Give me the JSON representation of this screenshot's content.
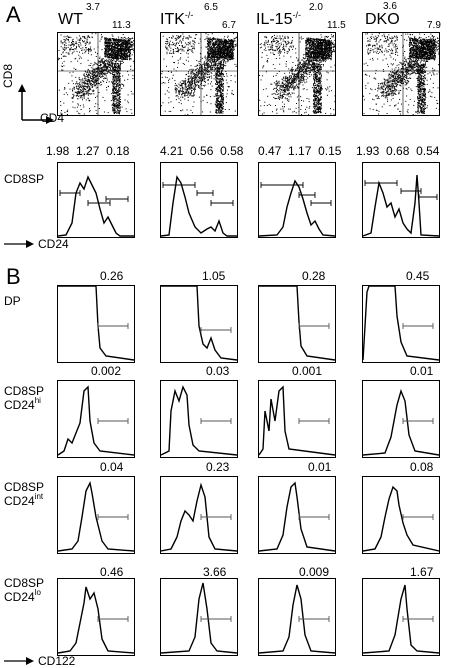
{
  "panel_a": {
    "letter": "A",
    "genotypes": [
      {
        "name": "WT",
        "sup": "",
        "q_ul": "3.7",
        "q_ur": "11.3"
      },
      {
        "name": "ITK",
        "sup": "-/-",
        "q_ul": "6.5",
        "q_ur": "6.7"
      },
      {
        "name": "IL-15",
        "sup": "-/-",
        "q_ul": "2.0",
        "q_ur": "11.5"
      },
      {
        "name": "DKO",
        "sup": "",
        "q_ul": "3.6",
        "q_ur": "7.9"
      }
    ],
    "y_axis": "CD8",
    "x_axis": "CD4",
    "cd24_stats": [
      [
        "1.98",
        "1.27",
        "0.18"
      ],
      [
        "4.21",
        "0.56",
        "0.58"
      ],
      [
        "0.47",
        "1.17",
        "0.15"
      ],
      [
        "1.93",
        "0.68",
        "0.54"
      ]
    ],
    "hist_row_label": "CD8SP",
    "hist_x_axis": "CD24"
  },
  "panel_b": {
    "letter": "B",
    "rows": [
      {
        "label": "DP",
        "sub": "",
        "values": [
          "0.26",
          "1.05",
          "0.28",
          "0.45"
        ]
      },
      {
        "label": "CD8SP",
        "sub": "CD24",
        "sup": "hi",
        "values": [
          "0.002",
          "0.03",
          "0.001",
          "0.01"
        ]
      },
      {
        "label": "CD8SP",
        "sub": "CD24",
        "sup": "int",
        "values": [
          "0.04",
          "0.23",
          "0.01",
          "0.08"
        ]
      },
      {
        "label": "CD8SP",
        "sub": "CD24",
        "sup": "lo",
        "values": [
          "0.46",
          "3.66",
          "0.009",
          "1.67"
        ]
      }
    ],
    "x_axis": "CD122"
  }
}
